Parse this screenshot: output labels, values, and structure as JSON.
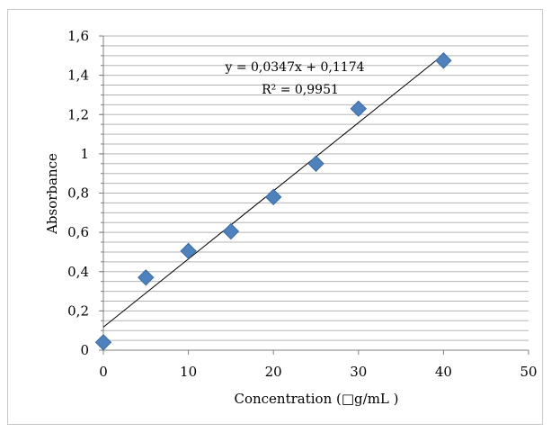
{
  "chart_data": {
    "type": "scatter",
    "xlabel": "Concentration (□g/mL )",
    "ylabel": "Absorbance",
    "xlim": [
      0,
      50
    ],
    "ylim": [
      0,
      1.6
    ],
    "x_ticks": [
      "0",
      "10",
      "20",
      "30",
      "40",
      "50"
    ],
    "y_ticks": [
      "0",
      "0,2",
      "0,4",
      "0,6",
      "0,8",
      "1",
      "1,2",
      "1,4",
      "1,6"
    ],
    "grid": "horizontal",
    "marker": "diamond",
    "marker_color": "#4f81bd",
    "series": [
      {
        "x": [
          0,
          5,
          10,
          15,
          20,
          25,
          30,
          40
        ],
        "y": [
          0.04,
          0.37,
          0.505,
          0.605,
          0.78,
          0.95,
          1.23,
          1.475
        ]
      }
    ],
    "trendline": {
      "slope": 0.0347,
      "intercept": 0.1174,
      "equation": "y = 0,0347x + 0,1174",
      "r_squared": "R² = 0,9951"
    }
  }
}
